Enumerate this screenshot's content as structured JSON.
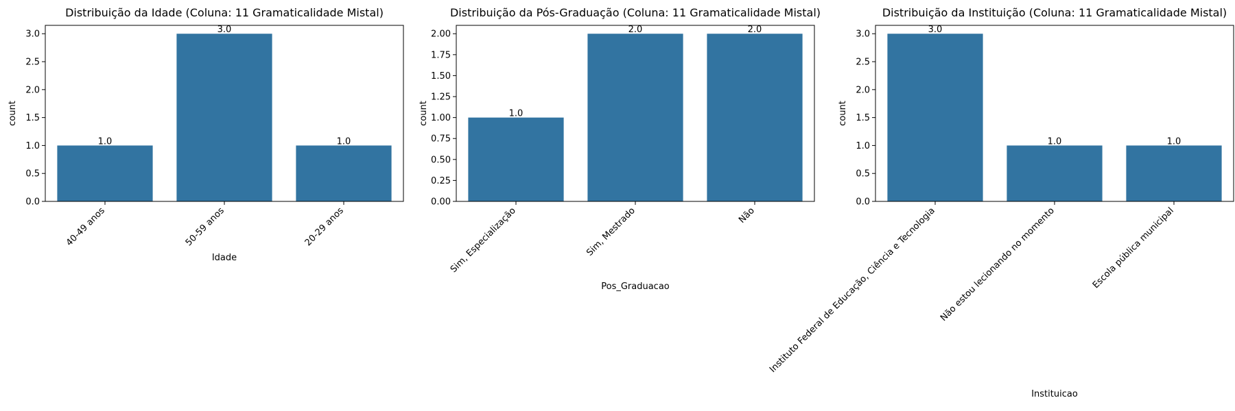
{
  "colors": {
    "bar": "#3274a1",
    "axis": "#000000",
    "background": "#ffffff"
  },
  "chart_data": [
    {
      "type": "bar",
      "title": "Distribuição da Idade (Coluna: 11 Gramaticalidade Mistal)",
      "xlabel": "Idade",
      "ylabel": "count",
      "categories": [
        "40-49 anos",
        "50-59 anos",
        "20-29 anos"
      ],
      "values": [
        1.0,
        3.0,
        1.0
      ],
      "value_labels": [
        "1.0",
        "3.0",
        "1.0"
      ],
      "ylim": [
        0,
        3.15
      ],
      "yticks": [
        0.0,
        0.5,
        1.0,
        1.5,
        2.0,
        2.5,
        3.0
      ],
      "ytick_labels": [
        "0.0",
        "0.5",
        "1.0",
        "1.5",
        "2.0",
        "2.5",
        "3.0"
      ],
      "grid": false,
      "xtick_rotation": 45
    },
    {
      "type": "bar",
      "title": "Distribuição da Pós-Graduação (Coluna: 11 Gramaticalidade Mistal)",
      "xlabel": "Pos_Graduacao",
      "ylabel": "count",
      "categories": [
        "Sim, Especialização",
        "Sim, Mestrado",
        "Não"
      ],
      "values": [
        1.0,
        2.0,
        2.0
      ],
      "value_labels": [
        "1.0",
        "2.0",
        "2.0"
      ],
      "ylim": [
        0,
        2.1
      ],
      "yticks": [
        0.0,
        0.25,
        0.5,
        0.75,
        1.0,
        1.25,
        1.5,
        1.75,
        2.0
      ],
      "ytick_labels": [
        "0.00",
        "0.25",
        "0.50",
        "0.75",
        "1.00",
        "1.25",
        "1.50",
        "1.75",
        "2.00"
      ],
      "grid": false,
      "xtick_rotation": 45
    },
    {
      "type": "bar",
      "title": "Distribuição da Instituição (Coluna: 11 Gramaticalidade Mistal)",
      "xlabel": "Instituicao",
      "ylabel": "count",
      "categories": [
        "Instituto Federal de Educação, Ciência e Tecnologia",
        "Não estou lecionando no momento",
        "Escola pública municipal"
      ],
      "values": [
        3.0,
        1.0,
        1.0
      ],
      "value_labels": [
        "3.0",
        "1.0",
        "1.0"
      ],
      "ylim": [
        0,
        3.15
      ],
      "yticks": [
        0.0,
        0.5,
        1.0,
        1.5,
        2.0,
        2.5,
        3.0
      ],
      "ytick_labels": [
        "0.0",
        "0.5",
        "1.0",
        "1.5",
        "2.0",
        "2.5",
        "3.0"
      ],
      "grid": false,
      "xtick_rotation": 45
    }
  ]
}
